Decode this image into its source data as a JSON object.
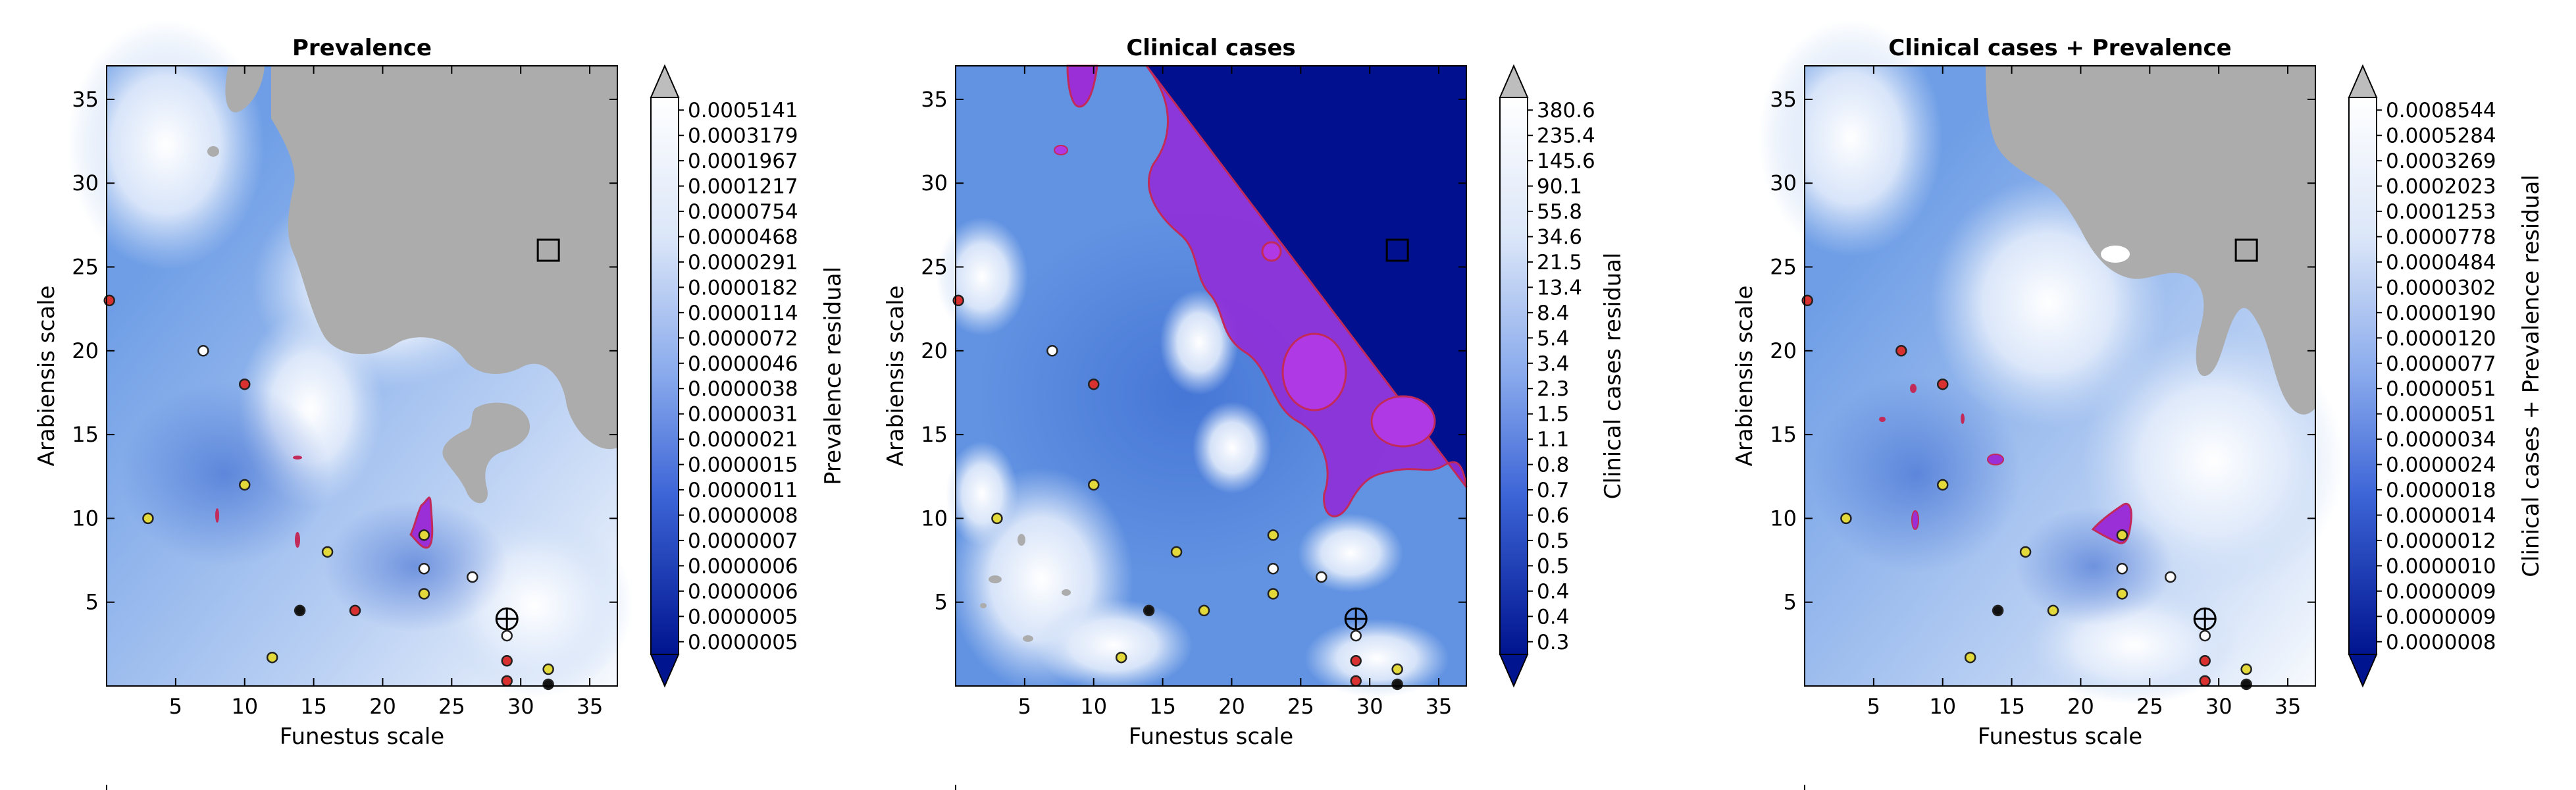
{
  "colors": {
    "field": "#6f9ee6",
    "field_light": "#c9dbf5",
    "field_dark": "#3d6fd6",
    "grey_region": "#acacac",
    "purple_region": "#9a2fd8",
    "purple_edge": "#c22a5a",
    "dark_region": "#00108f"
  },
  "chart_data": [
    {
      "type": "heatmap",
      "title": "Prevalence",
      "xlabel": "Funestus scale",
      "ylabel": "Arabiensis scale",
      "xlim": [
        0,
        37
      ],
      "ylim": [
        0,
        37
      ],
      "xticks": [
        5,
        10,
        15,
        20,
        25,
        30,
        35
      ],
      "yticks": [
        5,
        10,
        15,
        20,
        25,
        30,
        35
      ],
      "colorbar_label": "Prevalence residual",
      "colorbar_ticks": [
        "0.0005141",
        "0.0003179",
        "0.0001967",
        "0.0001217",
        "0.0000754",
        "0.0000468",
        "0.0000291",
        "0.0000182",
        "0.0000114",
        "0.0000072",
        "0.0000046",
        "0.0000038",
        "0.0000031",
        "0.0000021",
        "0.0000015",
        "0.0000011",
        "0.0000008",
        "0.0000007",
        "0.0000006",
        "0.0000006",
        "0.0000005",
        "0.0000005"
      ],
      "square_marker": [
        32,
        26
      ],
      "target_marker": [
        29,
        4
      ],
      "points": [
        {
          "x": 0.2,
          "y": 23,
          "c": "red"
        },
        {
          "x": 7,
          "y": 20,
          "c": "white"
        },
        {
          "x": 10,
          "y": 18,
          "c": "red"
        },
        {
          "x": 10,
          "y": 12,
          "c": "yellow"
        },
        {
          "x": 3,
          "y": 10,
          "c": "yellow"
        },
        {
          "x": 16,
          "y": 8,
          "c": "yellow"
        },
        {
          "x": 23,
          "y": 9,
          "c": "yellow"
        },
        {
          "x": 23,
          "y": 7,
          "c": "white"
        },
        {
          "x": 26.5,
          "y": 6.5,
          "c": "white"
        },
        {
          "x": 23,
          "y": 5.5,
          "c": "yellow"
        },
        {
          "x": 14,
          "y": 4.5,
          "c": "black"
        },
        {
          "x": 18,
          "y": 4.5,
          "c": "red"
        },
        {
          "x": 12,
          "y": 1.7,
          "c": "yellow"
        },
        {
          "x": 29,
          "y": 3,
          "c": "white"
        },
        {
          "x": 29,
          "y": 1.5,
          "c": "red"
        },
        {
          "x": 32,
          "y": 1,
          "c": "yellow"
        },
        {
          "x": 29,
          "y": 0.3,
          "c": "red"
        },
        {
          "x": 32,
          "y": 0.1,
          "c": "black"
        }
      ]
    },
    {
      "type": "heatmap",
      "title": "Clinical cases",
      "xlabel": "Funestus scale",
      "ylabel": "Arabiensis scale",
      "xlim": [
        0,
        37
      ],
      "ylim": [
        0,
        37
      ],
      "xticks": [
        5,
        10,
        15,
        20,
        25,
        30,
        35
      ],
      "yticks": [
        5,
        10,
        15,
        20,
        25,
        30,
        35
      ],
      "colorbar_label": "Clinical cases residual",
      "colorbar_ticks": [
        "380.6",
        "235.4",
        "145.6",
        "90.1",
        "55.8",
        "34.6",
        "21.5",
        "13.4",
        "8.4",
        "5.4",
        "3.4",
        "2.3",
        "1.5",
        "1.1",
        "0.8",
        "0.7",
        "0.6",
        "0.5",
        "0.5",
        "0.4",
        "0.4",
        "0.3"
      ],
      "square_marker": [
        32,
        26
      ],
      "target_marker": [
        29,
        4
      ],
      "points": [
        {
          "x": 0.2,
          "y": 23,
          "c": "red"
        },
        {
          "x": 7,
          "y": 20,
          "c": "white"
        },
        {
          "x": 10,
          "y": 18,
          "c": "red"
        },
        {
          "x": 10,
          "y": 12,
          "c": "yellow"
        },
        {
          "x": 3,
          "y": 10,
          "c": "yellow"
        },
        {
          "x": 16,
          "y": 8,
          "c": "yellow"
        },
        {
          "x": 23,
          "y": 9,
          "c": "yellow"
        },
        {
          "x": 23,
          "y": 7,
          "c": "white"
        },
        {
          "x": 26.5,
          "y": 6.5,
          "c": "white"
        },
        {
          "x": 23,
          "y": 5.5,
          "c": "yellow"
        },
        {
          "x": 14,
          "y": 4.5,
          "c": "black"
        },
        {
          "x": 18,
          "y": 4.5,
          "c": "yellow"
        },
        {
          "x": 12,
          "y": 1.7,
          "c": "yellow"
        },
        {
          "x": 29,
          "y": 3,
          "c": "white"
        },
        {
          "x": 29,
          "y": 1.5,
          "c": "red"
        },
        {
          "x": 32,
          "y": 1,
          "c": "yellow"
        },
        {
          "x": 29,
          "y": 0.3,
          "c": "red"
        },
        {
          "x": 32,
          "y": 0.1,
          "c": "black"
        }
      ]
    },
    {
      "type": "heatmap",
      "title": "Clinical cases + Prevalence",
      "xlabel": "Funestus scale",
      "ylabel": "Arabiensis scale",
      "xlim": [
        0,
        37
      ],
      "ylim": [
        0,
        37
      ],
      "xticks": [
        5,
        10,
        15,
        20,
        25,
        30,
        35
      ],
      "yticks": [
        5,
        10,
        15,
        20,
        25,
        30,
        35
      ],
      "colorbar_label": "Clinical cases + Prevalence residual",
      "colorbar_ticks": [
        "0.0008544",
        "0.0005284",
        "0.0003269",
        "0.0002023",
        "0.0001253",
        "0.0000778",
        "0.0000484",
        "0.0000302",
        "0.0000190",
        "0.0000120",
        "0.0000077",
        "0.0000051",
        "0.0000051",
        "0.0000034",
        "0.0000024",
        "0.0000018",
        "0.0000014",
        "0.0000012",
        "0.0000010",
        "0.0000009",
        "0.0000009",
        "0.0000008"
      ],
      "square_marker": [
        32,
        26
      ],
      "target_marker": [
        29,
        4
      ],
      "points": [
        {
          "x": 0.2,
          "y": 23,
          "c": "red"
        },
        {
          "x": 7,
          "y": 20,
          "c": "red"
        },
        {
          "x": 10,
          "y": 18,
          "c": "red"
        },
        {
          "x": 10,
          "y": 12,
          "c": "yellow"
        },
        {
          "x": 3,
          "y": 10,
          "c": "yellow"
        },
        {
          "x": 16,
          "y": 8,
          "c": "yellow"
        },
        {
          "x": 23,
          "y": 9,
          "c": "yellow"
        },
        {
          "x": 23,
          "y": 7,
          "c": "white"
        },
        {
          "x": 26.5,
          "y": 6.5,
          "c": "white"
        },
        {
          "x": 23,
          "y": 5.5,
          "c": "yellow"
        },
        {
          "x": 14,
          "y": 4.5,
          "c": "black"
        },
        {
          "x": 18,
          "y": 4.5,
          "c": "yellow"
        },
        {
          "x": 12,
          "y": 1.7,
          "c": "yellow"
        },
        {
          "x": 29,
          "y": 3,
          "c": "white"
        },
        {
          "x": 29,
          "y": 1.5,
          "c": "red"
        },
        {
          "x": 32,
          "y": 1,
          "c": "yellow"
        },
        {
          "x": 29,
          "y": 0.3,
          "c": "red"
        },
        {
          "x": 32,
          "y": 0.1,
          "c": "black"
        }
      ]
    }
  ]
}
